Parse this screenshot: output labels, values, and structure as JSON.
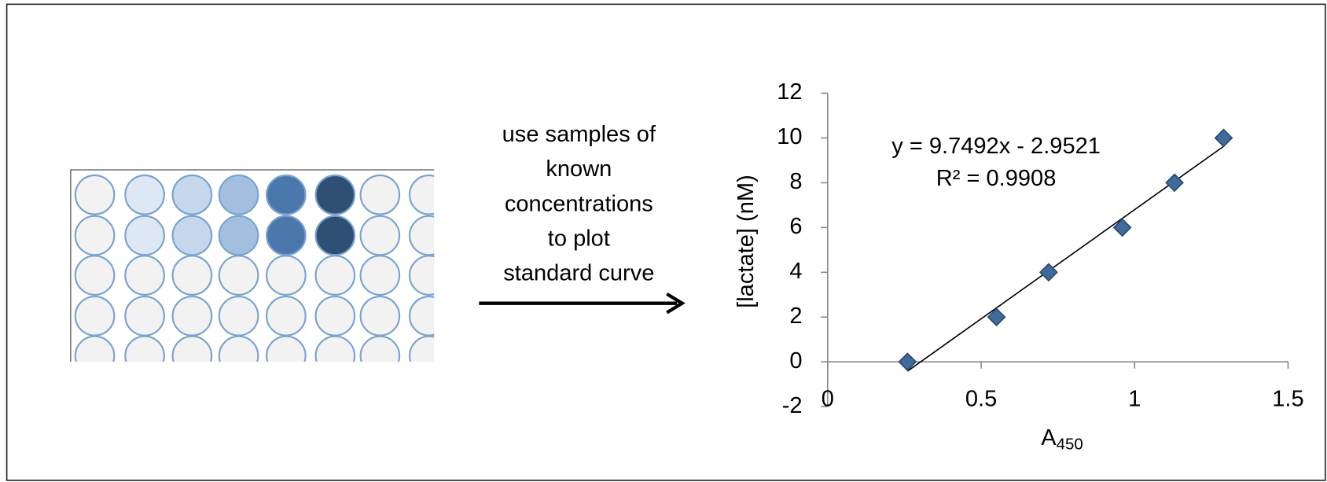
{
  "arrow_label_lines": [
    "use samples of",
    "known",
    "concentrations",
    "to plot",
    "standard curve"
  ],
  "chart_data": {
    "type": "scatter",
    "x_label": "A",
    "x_label_subscript": "450",
    "y_label": "[lactate] (nM)",
    "x": [
      0.26,
      0.55,
      0.72,
      0.96,
      1.13,
      1.29
    ],
    "values": [
      0,
      2,
      4,
      6,
      8,
      10
    ],
    "color": "#3f6a9a",
    "xlim": [
      0,
      1.5
    ],
    "xticks": [
      0,
      0.5,
      1,
      1.5
    ],
    "ylim": [
      -2,
      12
    ],
    "yticks": [
      -2,
      0,
      2,
      4,
      6,
      8,
      10,
      12
    ],
    "trendline": {
      "slope": 9.7492,
      "intercept": -2.9521
    },
    "annotations": [
      "y = 9.7492x - 2.9521",
      "R² = 0.9908"
    ]
  }
}
